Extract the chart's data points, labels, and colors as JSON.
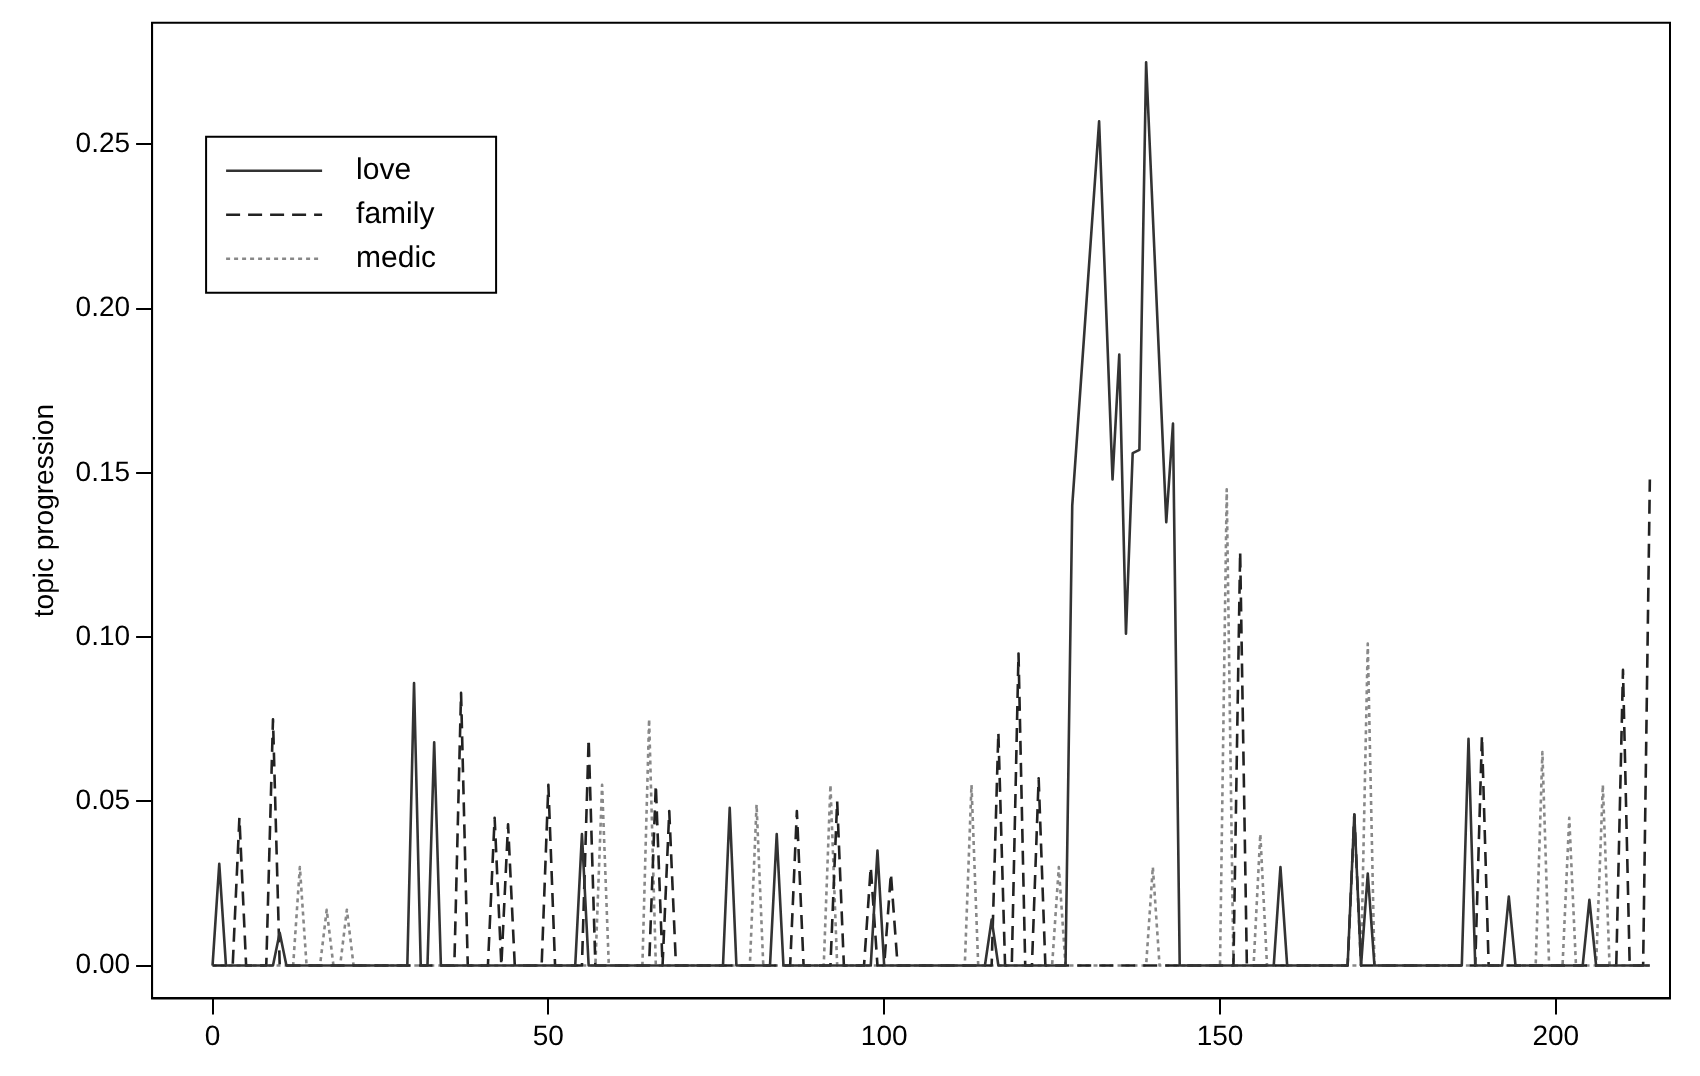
{
  "chart_data": {
    "type": "line",
    "ylabel": "topic progression",
    "xlim": [
      -9,
      217
    ],
    "ylim": [
      -0.01,
      0.287
    ],
    "xticks": [
      0,
      50,
      100,
      150,
      200
    ],
    "yticks": [
      {
        "value": 0,
        "label": "0.00"
      },
      {
        "value": 0.05,
        "label": "0.05"
      },
      {
        "value": 0.1,
        "label": "0.10"
      },
      {
        "value": 0.15,
        "label": "0.15"
      },
      {
        "value": 0.2,
        "label": "0.20"
      },
      {
        "value": 0.25,
        "label": "0.25"
      }
    ],
    "grid": false,
    "legend": "top left",
    "marker": "none",
    "series": [
      {
        "name": "love",
        "color": "#333333",
        "line_style": "solid",
        "x": [
          0,
          1,
          2,
          9,
          10,
          11,
          29,
          30,
          31,
          32,
          33,
          34,
          54,
          55,
          56,
          76,
          77,
          78,
          83,
          84,
          85,
          98,
          99,
          100,
          115,
          116,
          117,
          127,
          128,
          132,
          134,
          135,
          136,
          137,
          138,
          139,
          142,
          143,
          144,
          158,
          159,
          160,
          169,
          170,
          171,
          172,
          173,
          186,
          187,
          188,
          192,
          193,
          194,
          204,
          205,
          206,
          214
        ],
        "values": [
          0,
          0.031,
          0,
          0,
          0.01,
          0,
          0,
          0.086,
          0,
          0,
          0.068,
          0,
          0,
          0.04,
          0,
          0,
          0.048,
          0,
          0,
          0.04,
          0,
          0,
          0.035,
          0,
          0,
          0.014,
          0,
          0,
          0.14,
          0.257,
          0.148,
          0.186,
          0.101,
          0.156,
          0.157,
          0.275,
          0.135,
          0.165,
          0,
          0,
          0.03,
          0,
          0,
          0.046,
          0,
          0.028,
          0,
          0,
          0.069,
          0,
          0,
          0.021,
          0,
          0,
          0.02,
          0,
          0
        ]
      },
      {
        "name": "family",
        "color": "#222222",
        "line_style": "dashed",
        "x": [
          0,
          3,
          4,
          5,
          8,
          9,
          10,
          36,
          37,
          38,
          41,
          42,
          43,
          44,
          45,
          49,
          50,
          51,
          55,
          56,
          57,
          65,
          66,
          67,
          68,
          69,
          86,
          87,
          88,
          92,
          93,
          94,
          97,
          98,
          99,
          100,
          101,
          102,
          116,
          117,
          118,
          119,
          120,
          121,
          122,
          123,
          124,
          152,
          153,
          154,
          169,
          170,
          171,
          188,
          189,
          190,
          209,
          210,
          211,
          213,
          214
        ],
        "values": [
          0,
          0,
          0.045,
          0,
          0,
          0.075,
          0,
          0,
          0.083,
          0,
          0,
          0.045,
          0,
          0.043,
          0,
          0,
          0.055,
          0,
          0,
          0.069,
          0,
          0,
          0.055,
          0,
          0.047,
          0,
          0,
          0.047,
          0,
          0,
          0.05,
          0,
          0,
          0.03,
          0,
          0,
          0.028,
          0,
          0,
          0.071,
          0,
          0,
          0.095,
          0,
          0,
          0.057,
          0,
          0,
          0.126,
          0,
          0,
          0.046,
          0,
          0,
          0.07,
          0,
          0,
          0.09,
          0,
          0,
          0.148
        ]
      },
      {
        "name": "medic",
        "color": "#888888",
        "line_style": "dotted",
        "x": [
          0,
          12,
          13,
          14,
          16,
          17,
          18,
          19,
          20,
          21,
          57,
          58,
          59,
          64,
          65,
          66,
          80,
          81,
          82,
          91,
          92,
          93,
          112,
          113,
          114,
          125,
          126,
          127,
          139,
          140,
          141,
          150,
          151,
          152,
          155,
          156,
          157,
          171,
          172,
          173,
          197,
          198,
          199,
          201,
          202,
          203,
          206,
          207,
          208,
          214
        ],
        "values": [
          0,
          0,
          0.03,
          0,
          0,
          0.017,
          0,
          0,
          0.017,
          0,
          0,
          0.055,
          0,
          0,
          0.075,
          0,
          0,
          0.049,
          0,
          0,
          0.055,
          0,
          0,
          0.055,
          0,
          0,
          0.03,
          0,
          0,
          0.03,
          0,
          0,
          0.145,
          0,
          0,
          0.04,
          0,
          0,
          0.098,
          0,
          0,
          0.065,
          0,
          0,
          0.045,
          0,
          0,
          0.055,
          0,
          0
        ]
      }
    ]
  }
}
